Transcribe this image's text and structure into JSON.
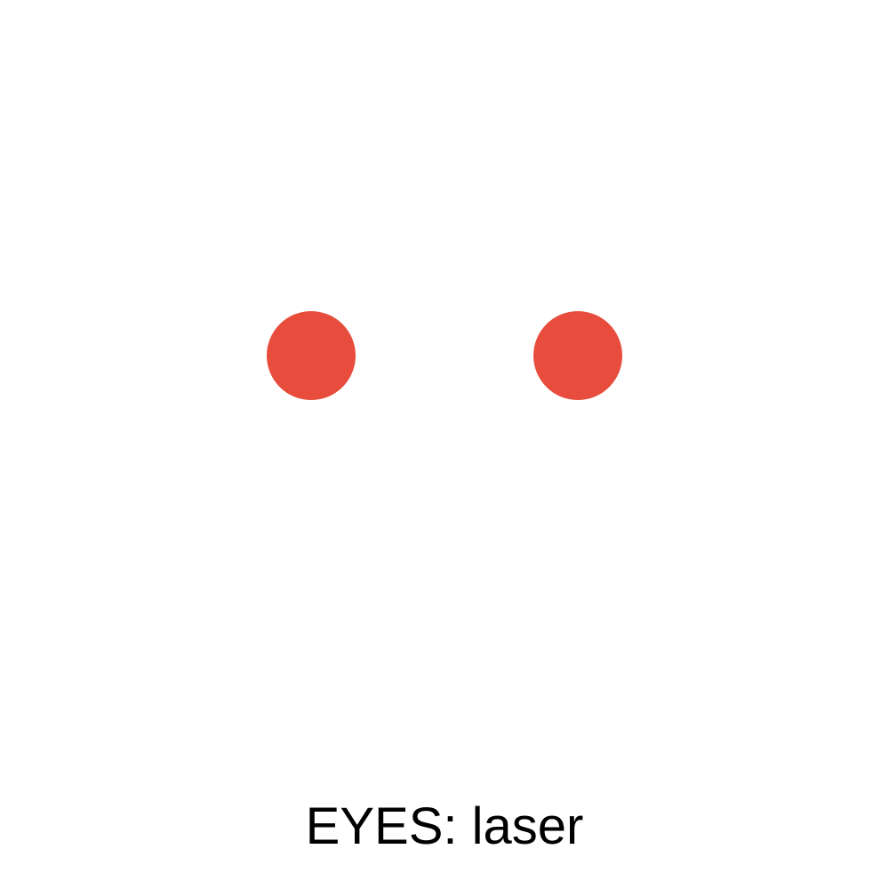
{
  "eyes": {
    "style": "laser",
    "color": "#e74c3c"
  },
  "caption": {
    "text": "EYES: laser"
  }
}
